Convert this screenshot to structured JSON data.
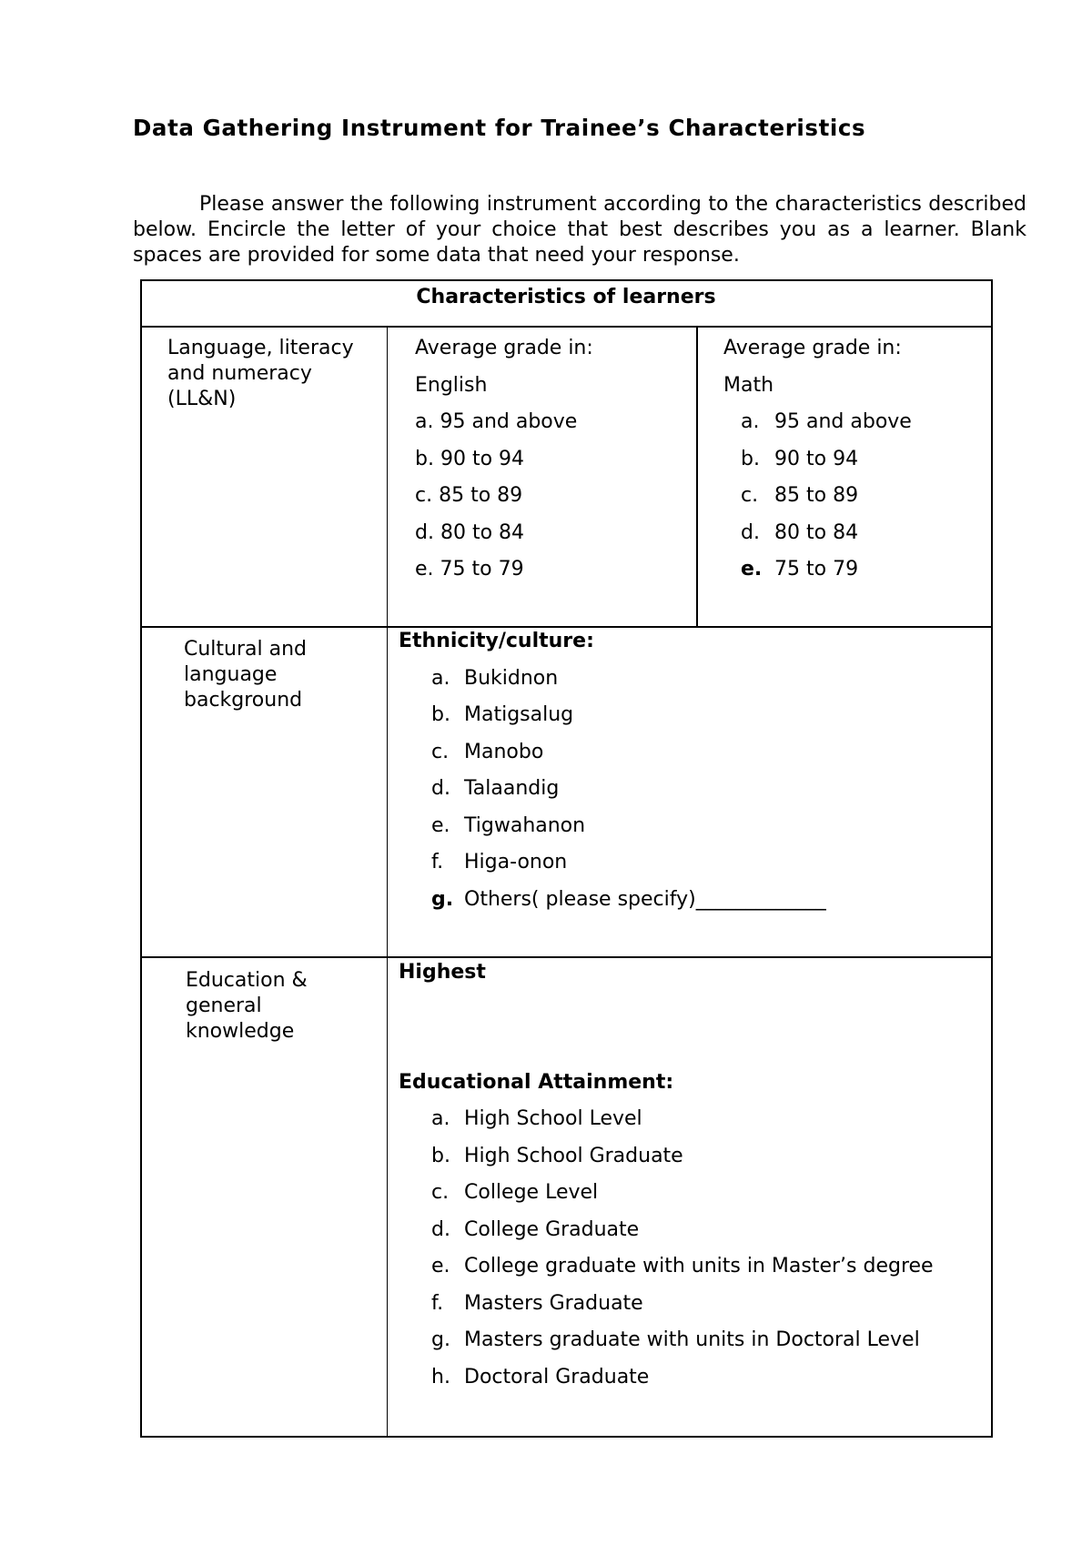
{
  "document": {
    "title": "Data Gathering Instrument for Trainee’s Characteristics",
    "intro": "Please answer the following instrument according to the characteristics described below.  Encircle the letter of your choice that best describes you as a learner.  Blank spaces are provided for some data that need your response."
  },
  "table": {
    "header": "Characteristics of learners",
    "row1": {
      "label_lines": [
        "Language, literacy",
        "and numeracy",
        "(LL&N)"
      ],
      "english": {
        "heading": "Average grade in:",
        "subject": "English",
        "items": [
          {
            "letter": "a.",
            "text": "95 and above"
          },
          {
            "letter": "b.",
            "text": "90 to 94"
          },
          {
            "letter": "c.",
            "text": "85 to 89"
          },
          {
            "letter": "d.",
            "text": "80 to 84"
          },
          {
            "letter": "e.",
            "text": "75 to 79"
          }
        ]
      },
      "math": {
        "heading": "Average grade in:",
        "subject": "Math",
        "items": [
          {
            "letter": "a.",
            "text": "95 and above"
          },
          {
            "letter": "b.",
            "text": "90 to 94"
          },
          {
            "letter": "c.",
            "text": "85 to 89"
          },
          {
            "letter": "d.",
            "text": "80 to 84"
          },
          {
            "letter": "e.",
            "text": "75 to 79",
            "bold_letter": true
          }
        ]
      }
    },
    "row2": {
      "label_lines": [
        "Cultural and",
        "language",
        "background"
      ],
      "heading": "Ethnicity/culture:",
      "items": [
        {
          "letter": "a.",
          "text": "Bukidnon"
        },
        {
          "letter": "b.",
          "text": "Matigsalug"
        },
        {
          "letter": "c.",
          "text": "Manobo"
        },
        {
          "letter": "d.",
          "text": "Talaandig"
        },
        {
          "letter": "e.",
          "text": "Tigwahanon"
        },
        {
          "letter": "f.",
          "text": "Higa-onon"
        },
        {
          "letter": "g.",
          "text": "Others( please specify)_____________",
          "bold_letter": true
        }
      ]
    },
    "row3": {
      "label_lines": [
        "Education &",
        "general",
        "knowledge"
      ],
      "heading1": "Highest",
      "heading2": "Educational Attainment:",
      "items": [
        {
          "letter": "a.",
          "text": "High School Level"
        },
        {
          "letter": "b.",
          "text": "High School Graduate"
        },
        {
          "letter": "c.",
          "text": "College Level"
        },
        {
          "letter": "d.",
          "text": "College Graduate"
        },
        {
          "letter": "e.",
          "text": "College graduate with units in Master’s degree"
        },
        {
          "letter": "f.",
          "text": "Masters Graduate"
        },
        {
          "letter": "g.",
          "text": "Masters graduate with units in Doctoral Level"
        },
        {
          "letter": "h.",
          "text": "Doctoral Graduate"
        }
      ]
    }
  }
}
